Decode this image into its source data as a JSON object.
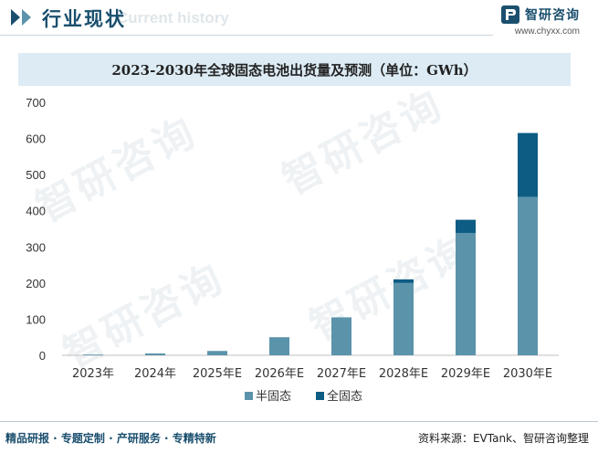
{
  "header": {
    "title": "行业现状",
    "ghost_text": "Current history",
    "brand_name": "智研咨询",
    "brand_url": "www.chyxx.com"
  },
  "watermark": "智研咨询",
  "footer": {
    "left": "精品研报 · 专题定制 · 产研服务 · 专精特新",
    "source": "资料来源：EVTank、智研咨询整理"
  },
  "colors": {
    "semi_solid": "#5b93ab",
    "all_solid": "#0d5c83",
    "title_bg": "#dcebf4",
    "brand": "#1a4f6e"
  },
  "chart_data": {
    "type": "bar",
    "stacked": true,
    "title": "2023-2030年全球固态电池出货量及预测（单位：GWh）",
    "categories": [
      "2023年",
      "2024年",
      "2025年E",
      "2026年E",
      "2027年E",
      "2028年E",
      "2029年E",
      "2030年E"
    ],
    "series": [
      {
        "name": "半固态",
        "color": "#5b93ab",
        "values": [
          2,
          5,
          12,
          50,
          105,
          200,
          338,
          438
        ]
      },
      {
        "name": "全固态",
        "color": "#0d5c83",
        "values": [
          0,
          0,
          0,
          0,
          0,
          10,
          37,
          177
        ]
      }
    ],
    "ylim": [
      0,
      700
    ],
    "yticks": [
      0,
      100,
      200,
      300,
      400,
      500,
      600,
      700
    ],
    "legend_position": "bottom",
    "grid": false
  }
}
